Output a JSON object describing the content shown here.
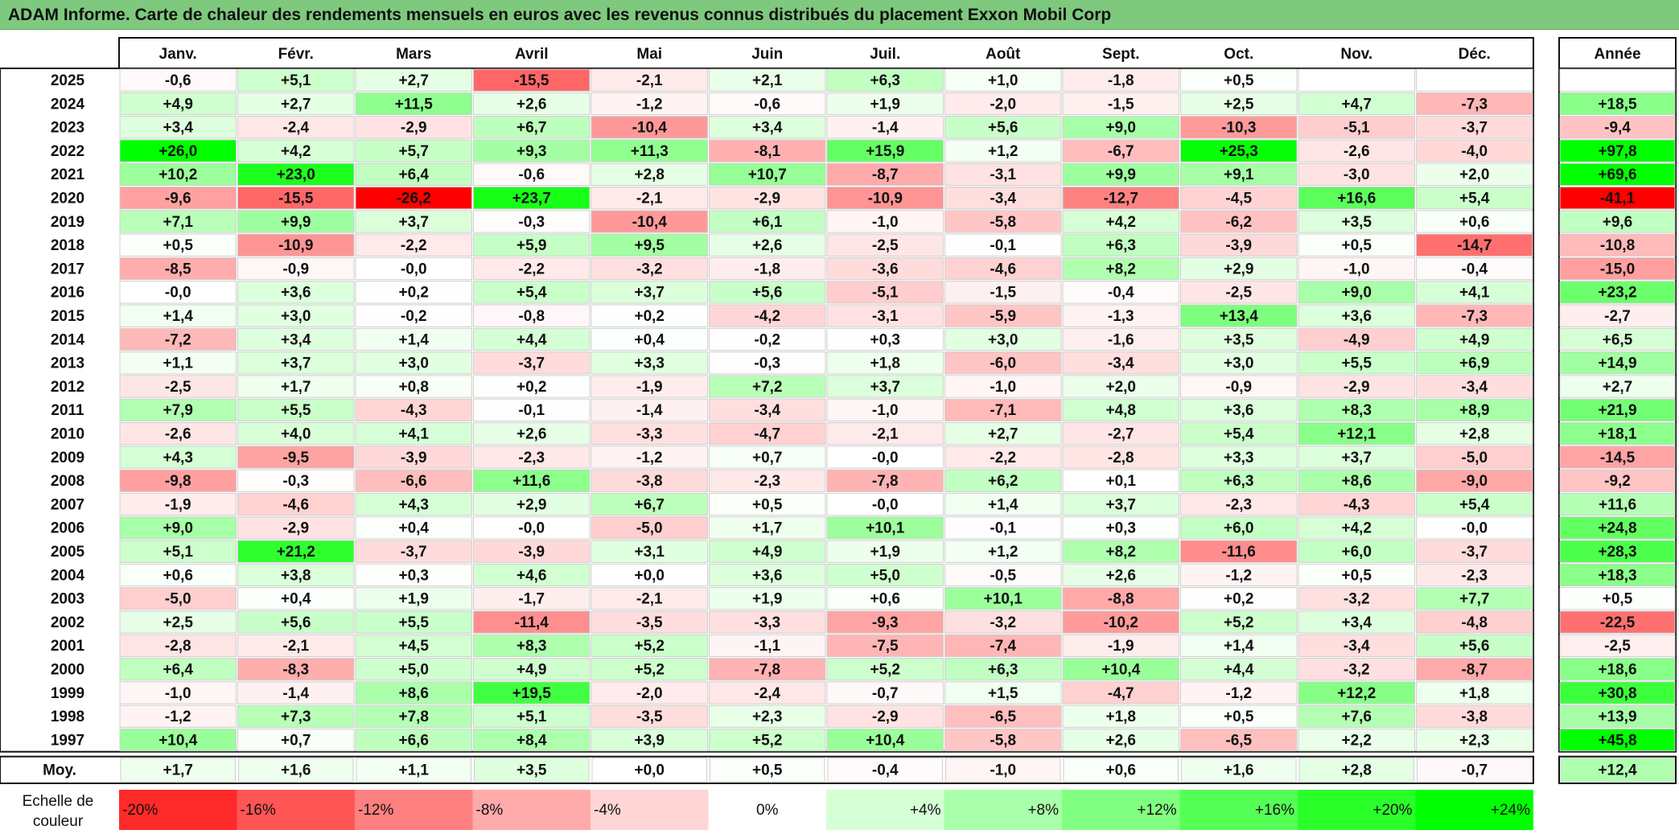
{
  "title": "ADAM Informe. Carte de chaleur des rendements mensuels en euros avec les revenus connus distribués du placement Exxon Mobil Corp",
  "colors": {
    "title_bg": "#7ec97e",
    "positive": "#00ff00",
    "negative": "#ff0000",
    "neutral": "#ffffff"
  },
  "chart_data": {
    "type": "heatmap",
    "title": "ADAM Informe. Carte de chaleur des rendements mensuels en euros avec les revenus connus distribués du placement Exxon Mobil Corp",
    "columns": [
      "Janv.",
      "Févr.",
      "Mars",
      "Avril",
      "Mai",
      "Juin",
      "Juil.",
      "Août",
      "Sept.",
      "Oct.",
      "Nov.",
      "Déc."
    ],
    "year_column_label": "Année",
    "rows": [
      {
        "year": "2025",
        "values": [
          "-0,6",
          "+5,1",
          "+2,7",
          "-15,5",
          "-2,1",
          "+2,1",
          "+6,3",
          "+1,0",
          "-1,8",
          "+0,5",
          "",
          ""
        ],
        "annual": ""
      },
      {
        "year": "2024",
        "values": [
          "+4,9",
          "+2,7",
          "+11,5",
          "+2,6",
          "-1,2",
          "-0,6",
          "+1,9",
          "-2,0",
          "-1,5",
          "+2,5",
          "+4,7",
          "-7,3"
        ],
        "annual": "+18,5"
      },
      {
        "year": "2023",
        "values": [
          "+3,4",
          "-2,4",
          "-2,9",
          "+6,7",
          "-10,4",
          "+3,4",
          "-1,4",
          "+5,6",
          "+9,0",
          "-10,3",
          "-5,1",
          "-3,7"
        ],
        "annual": "-9,4"
      },
      {
        "year": "2022",
        "values": [
          "+26,0",
          "+4,2",
          "+5,7",
          "+9,3",
          "+11,3",
          "-8,1",
          "+15,9",
          "+1,2",
          "-6,7",
          "+25,3",
          "-2,6",
          "-4,0"
        ],
        "annual": "+97,8"
      },
      {
        "year": "2021",
        "values": [
          "+10,2",
          "+23,0",
          "+6,4",
          "-0,6",
          "+2,8",
          "+10,7",
          "-8,7",
          "-3,1",
          "+9,9",
          "+9,1",
          "-3,0",
          "+2,0"
        ],
        "annual": "+69,6"
      },
      {
        "year": "2020",
        "values": [
          "-9,6",
          "-15,5",
          "-26,2",
          "+23,7",
          "-2,1",
          "-2,9",
          "-10,9",
          "-3,4",
          "-12,7",
          "-4,5",
          "+16,6",
          "+5,4"
        ],
        "annual": "-41,1"
      },
      {
        "year": "2019",
        "values": [
          "+7,1",
          "+9,9",
          "+3,7",
          "-0,3",
          "-10,4",
          "+6,1",
          "-1,0",
          "-5,8",
          "+4,2",
          "-6,2",
          "+3,5",
          "+0,6"
        ],
        "annual": "+9,6"
      },
      {
        "year": "2018",
        "values": [
          "+0,5",
          "-10,9",
          "-2,2",
          "+5,9",
          "+9,5",
          "+2,6",
          "-2,5",
          "-0,1",
          "+6,3",
          "-3,9",
          "+0,5",
          "-14,7"
        ],
        "annual": "-10,8"
      },
      {
        "year": "2017",
        "values": [
          "-8,5",
          "-0,9",
          "-0,0",
          "-2,2",
          "-3,2",
          "-1,8",
          "-3,6",
          "-4,6",
          "+8,2",
          "+2,9",
          "-1,0",
          "-0,4"
        ],
        "annual": "-15,0"
      },
      {
        "year": "2016",
        "values": [
          "-0,0",
          "+3,6",
          "+0,2",
          "+5,4",
          "+3,7",
          "+5,6",
          "-5,1",
          "-1,5",
          "-0,4",
          "-2,5",
          "+9,0",
          "+4,1"
        ],
        "annual": "+23,2"
      },
      {
        "year": "2015",
        "values": [
          "+1,4",
          "+3,0",
          "-0,2",
          "-0,8",
          "+0,2",
          "-4,2",
          "-3,1",
          "-5,9",
          "-1,3",
          "+13,4",
          "+3,6",
          "-7,3"
        ],
        "annual": "-2,7"
      },
      {
        "year": "2014",
        "values": [
          "-7,2",
          "+3,4",
          "+1,4",
          "+4,4",
          "+0,4",
          "-0,2",
          "+0,3",
          "+3,0",
          "-1,6",
          "+3,5",
          "-4,9",
          "+4,9"
        ],
        "annual": "+6,5"
      },
      {
        "year": "2013",
        "values": [
          "+1,1",
          "+3,7",
          "+3,0",
          "-3,7",
          "+3,3",
          "-0,3",
          "+1,8",
          "-6,0",
          "-3,4",
          "+3,0",
          "+5,5",
          "+6,9"
        ],
        "annual": "+14,9"
      },
      {
        "year": "2012",
        "values": [
          "-2,5",
          "+1,7",
          "+0,8",
          "+0,2",
          "-1,9",
          "+7,2",
          "+3,7",
          "-1,0",
          "+2,0",
          "-0,9",
          "-2,9",
          "-3,4"
        ],
        "annual": "+2,7"
      },
      {
        "year": "2011",
        "values": [
          "+7,9",
          "+5,5",
          "-4,3",
          "-0,1",
          "-1,4",
          "-3,4",
          "-1,0",
          "-7,1",
          "+4,8",
          "+3,6",
          "+8,3",
          "+8,9"
        ],
        "annual": "+21,9"
      },
      {
        "year": "2010",
        "values": [
          "-2,6",
          "+4,0",
          "+4,1",
          "+2,6",
          "-3,3",
          "-4,7",
          "-2,1",
          "+2,7",
          "-2,7",
          "+5,4",
          "+12,1",
          "+2,8"
        ],
        "annual": "+18,1"
      },
      {
        "year": "2009",
        "values": [
          "+4,3",
          "-9,5",
          "-3,9",
          "-2,3",
          "-1,2",
          "+0,7",
          "-0,0",
          "-2,2",
          "-2,8",
          "+3,3",
          "+3,7",
          "-5,0"
        ],
        "annual": "-14,5"
      },
      {
        "year": "2008",
        "values": [
          "-9,8",
          "-0,3",
          "-6,6",
          "+11,6",
          "-3,8",
          "-2,3",
          "-7,8",
          "+6,2",
          "+0,1",
          "+6,3",
          "+8,6",
          "-9,0"
        ],
        "annual": "-9,2"
      },
      {
        "year": "2007",
        "values": [
          "-1,9",
          "-4,6",
          "+4,3",
          "+2,9",
          "+6,7",
          "+0,5",
          "-0,0",
          "+1,4",
          "+3,7",
          "-2,3",
          "-4,3",
          "+5,4"
        ],
        "annual": "+11,6"
      },
      {
        "year": "2006",
        "values": [
          "+9,0",
          "-2,9",
          "+0,4",
          "-0,0",
          "-5,0",
          "+1,7",
          "+10,1",
          "-0,1",
          "+0,3",
          "+6,0",
          "+4,2",
          "-0,0"
        ],
        "annual": "+24,8"
      },
      {
        "year": "2005",
        "values": [
          "+5,1",
          "+21,2",
          "-3,7",
          "-3,9",
          "+3,1",
          "+4,9",
          "+1,9",
          "+1,2",
          "+8,2",
          "-11,6",
          "+6,0",
          "-3,7"
        ],
        "annual": "+28,3"
      },
      {
        "year": "2004",
        "values": [
          "+0,6",
          "+3,8",
          "+0,3",
          "+4,6",
          "+0,0",
          "+3,6",
          "+5,0",
          "-0,5",
          "+2,6",
          "-1,2",
          "+0,5",
          "-2,3"
        ],
        "annual": "+18,3"
      },
      {
        "year": "2003",
        "values": [
          "-5,0",
          "+0,4",
          "+1,9",
          "-1,7",
          "-2,1",
          "+1,9",
          "+0,6",
          "+10,1",
          "-8,8",
          "+0,2",
          "-3,2",
          "+7,7"
        ],
        "annual": "+0,5"
      },
      {
        "year": "2002",
        "values": [
          "+2,5",
          "+5,6",
          "+5,5",
          "-11,4",
          "-3,5",
          "-3,3",
          "-9,3",
          "-3,2",
          "-10,2",
          "+5,2",
          "+3,4",
          "-4,8"
        ],
        "annual": "-22,5"
      },
      {
        "year": "2001",
        "values": [
          "-2,8",
          "-2,1",
          "+4,5",
          "+8,3",
          "+5,2",
          "-1,1",
          "-7,5",
          "-7,4",
          "-1,9",
          "+1,4",
          "-3,4",
          "+5,6"
        ],
        "annual": "-2,5"
      },
      {
        "year": "2000",
        "values": [
          "+6,4",
          "-8,3",
          "+5,0",
          "+4,9",
          "+5,2",
          "-7,8",
          "+5,2",
          "+6,3",
          "+10,4",
          "+4,4",
          "-3,2",
          "-8,7"
        ],
        "annual": "+18,6"
      },
      {
        "year": "1999",
        "values": [
          "-1,0",
          "-1,4",
          "+8,6",
          "+19,5",
          "-2,0",
          "-2,4",
          "-0,7",
          "+1,5",
          "-4,7",
          "-1,2",
          "+12,2",
          "+1,8"
        ],
        "annual": "+30,8"
      },
      {
        "year": "1998",
        "values": [
          "-1,2",
          "+7,3",
          "+7,8",
          "+5,1",
          "-3,5",
          "+2,3",
          "-2,9",
          "-6,5",
          "+1,8",
          "+0,5",
          "+7,6",
          "-3,8"
        ],
        "annual": "+13,9"
      },
      {
        "year": "1997",
        "values": [
          "+10,4",
          "+0,7",
          "+6,6",
          "+8,4",
          "+3,9",
          "+5,2",
          "+10,4",
          "-5,8",
          "+2,6",
          "-6,5",
          "+2,2",
          "+2,3"
        ],
        "annual": "+45,8"
      }
    ],
    "average": {
      "label": "Moy.",
      "values": [
        "+1,7",
        "+1,6",
        "+1,1",
        "+3,5",
        "+0,0",
        "+0,5",
        "-0,4",
        "-1,0",
        "+0,6",
        "+1,6",
        "+2,8",
        "-0,7"
      ],
      "annual": "+12,4"
    },
    "color_scale": {
      "label": "Echelle de couleur",
      "steps": [
        {
          "label": "-20%",
          "value": -20
        },
        {
          "label": "-16%",
          "value": -16
        },
        {
          "label": "-12%",
          "value": -12
        },
        {
          "label": "-8%",
          "value": -8
        },
        {
          "label": "-4%",
          "value": -4
        },
        {
          "label": "0%",
          "value": 0
        },
        {
          "label": "+4%",
          "value": 4
        },
        {
          "label": "+8%",
          "value": 8
        },
        {
          "label": "+12%",
          "value": 12
        },
        {
          "label": "+16%",
          "value": 16
        },
        {
          "label": "+20%",
          "value": 20
        },
        {
          "label": "+24%",
          "value": 24
        }
      ]
    }
  }
}
